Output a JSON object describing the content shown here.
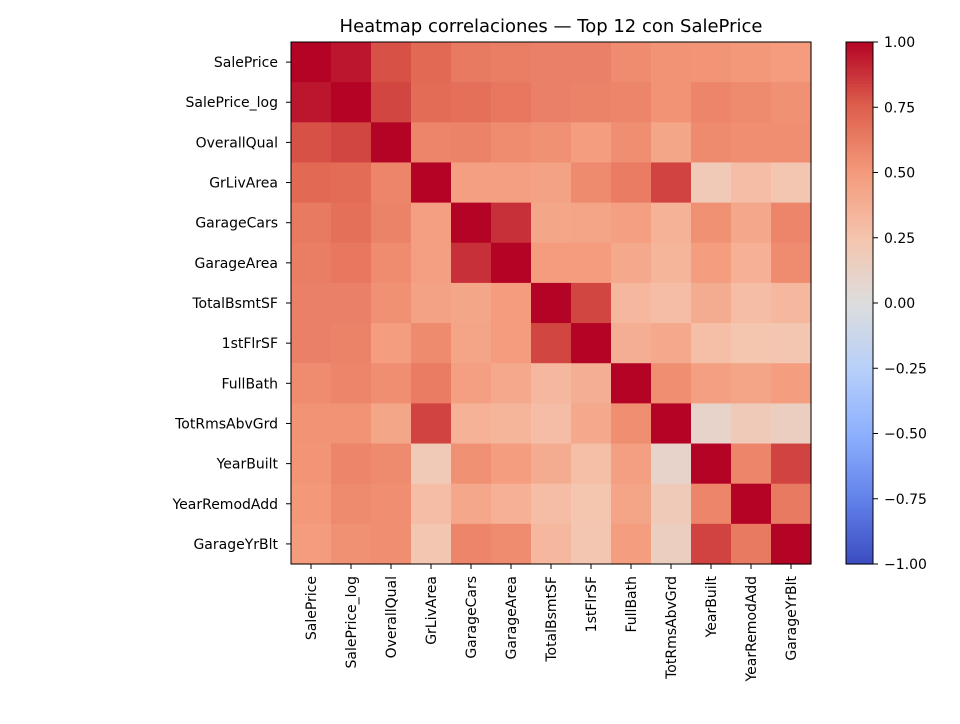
{
  "chart_data": {
    "type": "heatmap",
    "title": "Heatmap correlaciones — Top 12 con SalePrice",
    "xlabel": "",
    "ylabel": "",
    "labels": [
      "SalePrice",
      "SalePrice_log",
      "OverallQual",
      "GrLivArea",
      "GarageCars",
      "GarageArea",
      "TotalBsmtSF",
      "1stFlrSF",
      "FullBath",
      "TotRmsAbvGrd",
      "YearBuilt",
      "YearRemodAdd",
      "GarageYrBlt"
    ],
    "matrix": [
      [
        1.0,
        0.95,
        0.79,
        0.71,
        0.64,
        0.62,
        0.61,
        0.61,
        0.56,
        0.53,
        0.52,
        0.51,
        0.49
      ],
      [
        0.95,
        1.0,
        0.82,
        0.7,
        0.68,
        0.65,
        0.61,
        0.6,
        0.59,
        0.53,
        0.59,
        0.57,
        0.54
      ],
      [
        0.79,
        0.82,
        1.0,
        0.59,
        0.6,
        0.56,
        0.54,
        0.48,
        0.55,
        0.43,
        0.57,
        0.55,
        0.55
      ],
      [
        0.71,
        0.7,
        0.59,
        1.0,
        0.47,
        0.47,
        0.45,
        0.57,
        0.63,
        0.83,
        0.2,
        0.29,
        0.23
      ],
      [
        0.64,
        0.68,
        0.6,
        0.47,
        1.0,
        0.88,
        0.43,
        0.44,
        0.47,
        0.36,
        0.54,
        0.42,
        0.59
      ],
      [
        0.62,
        0.65,
        0.56,
        0.47,
        0.88,
        1.0,
        0.49,
        0.49,
        0.41,
        0.34,
        0.48,
        0.37,
        0.56
      ],
      [
        0.61,
        0.61,
        0.54,
        0.45,
        0.43,
        0.49,
        1.0,
        0.82,
        0.32,
        0.29,
        0.39,
        0.29,
        0.32
      ],
      [
        0.61,
        0.6,
        0.48,
        0.57,
        0.44,
        0.49,
        0.82,
        1.0,
        0.38,
        0.41,
        0.28,
        0.24,
        0.23
      ],
      [
        0.56,
        0.59,
        0.55,
        0.63,
        0.47,
        0.41,
        0.32,
        0.38,
        1.0,
        0.55,
        0.47,
        0.44,
        0.48
      ],
      [
        0.53,
        0.53,
        0.43,
        0.83,
        0.36,
        0.34,
        0.29,
        0.41,
        0.55,
        1.0,
        0.1,
        0.19,
        0.15
      ],
      [
        0.52,
        0.59,
        0.57,
        0.2,
        0.54,
        0.48,
        0.39,
        0.28,
        0.47,
        0.1,
        1.0,
        0.59,
        0.83
      ],
      [
        0.51,
        0.57,
        0.55,
        0.29,
        0.42,
        0.37,
        0.29,
        0.24,
        0.44,
        0.19,
        0.59,
        1.0,
        0.64
      ],
      [
        0.49,
        0.54,
        0.55,
        0.23,
        0.59,
        0.56,
        0.32,
        0.23,
        0.48,
        0.15,
        0.83,
        0.64,
        1.0
      ]
    ],
    "colorbar": {
      "colormap": "coolwarm",
      "vmin": -1.0,
      "vmax": 1.0,
      "ticks": [
        "1.00",
        "0.75",
        "0.50",
        "0.25",
        "0.00",
        "−0.25",
        "−0.50",
        "−0.75",
        "−1.00"
      ]
    },
    "grid": false
  }
}
